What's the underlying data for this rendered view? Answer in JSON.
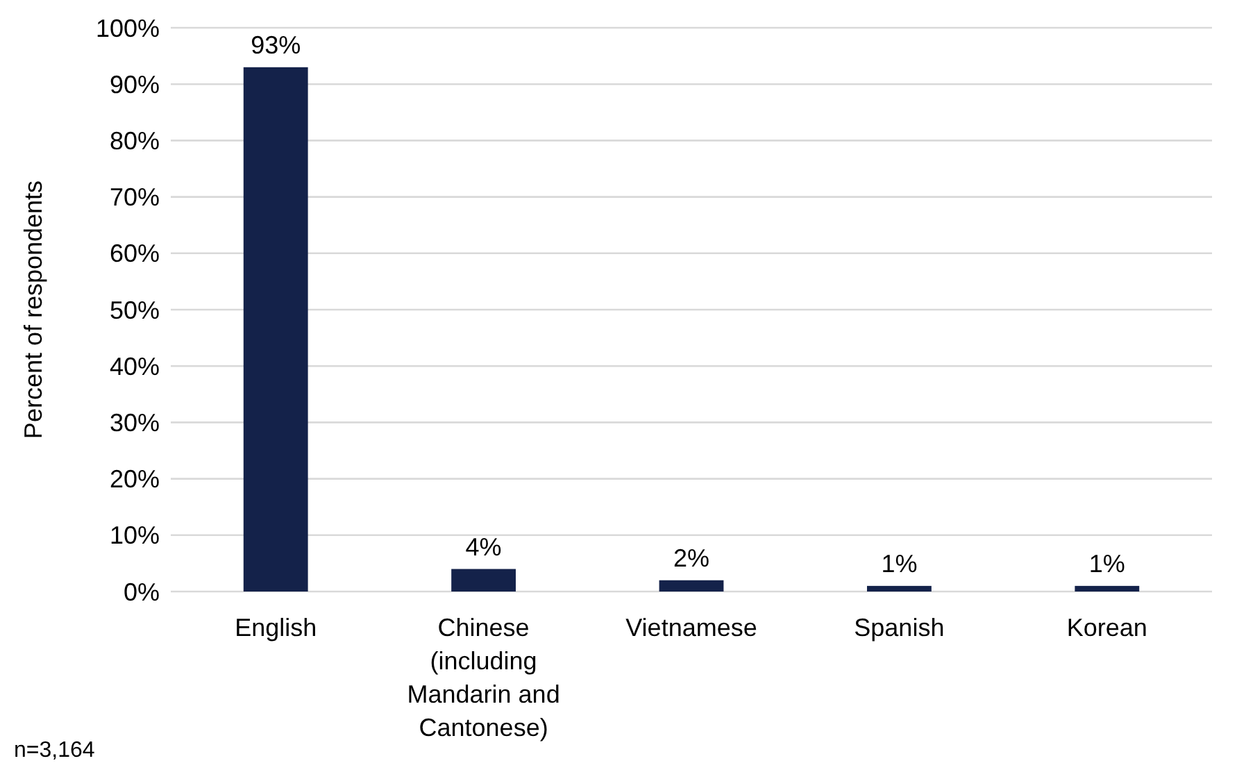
{
  "chart_data": {
    "type": "bar",
    "ylabel": "Percent of respondents",
    "categories": [
      "English",
      "Chinese (including Mandarin and Cantonese)",
      "Vietnamese",
      "Spanish",
      "Korean"
    ],
    "values": [
      93,
      4,
      2,
      1,
      1
    ],
    "color": "#14224a",
    "value_labels": [
      "93%",
      "4%",
      "2%",
      "1%",
      "1%"
    ],
    "ylim": [
      0,
      100
    ],
    "yticks": [
      {
        "value": 0,
        "label": "0%"
      },
      {
        "value": 10,
        "label": "10%"
      },
      {
        "value": 20,
        "label": "20%"
      },
      {
        "value": 30,
        "label": "30%"
      },
      {
        "value": 40,
        "label": "40%"
      },
      {
        "value": 50,
        "label": "50%"
      },
      {
        "value": 60,
        "label": "60%"
      },
      {
        "value": 70,
        "label": "70%"
      },
      {
        "value": 80,
        "label": "80%"
      },
      {
        "value": 90,
        "label": "90%"
      },
      {
        "value": 100,
        "label": "100%"
      }
    ],
    "grid": "y",
    "annotations": [
      "n=3,164"
    ]
  }
}
